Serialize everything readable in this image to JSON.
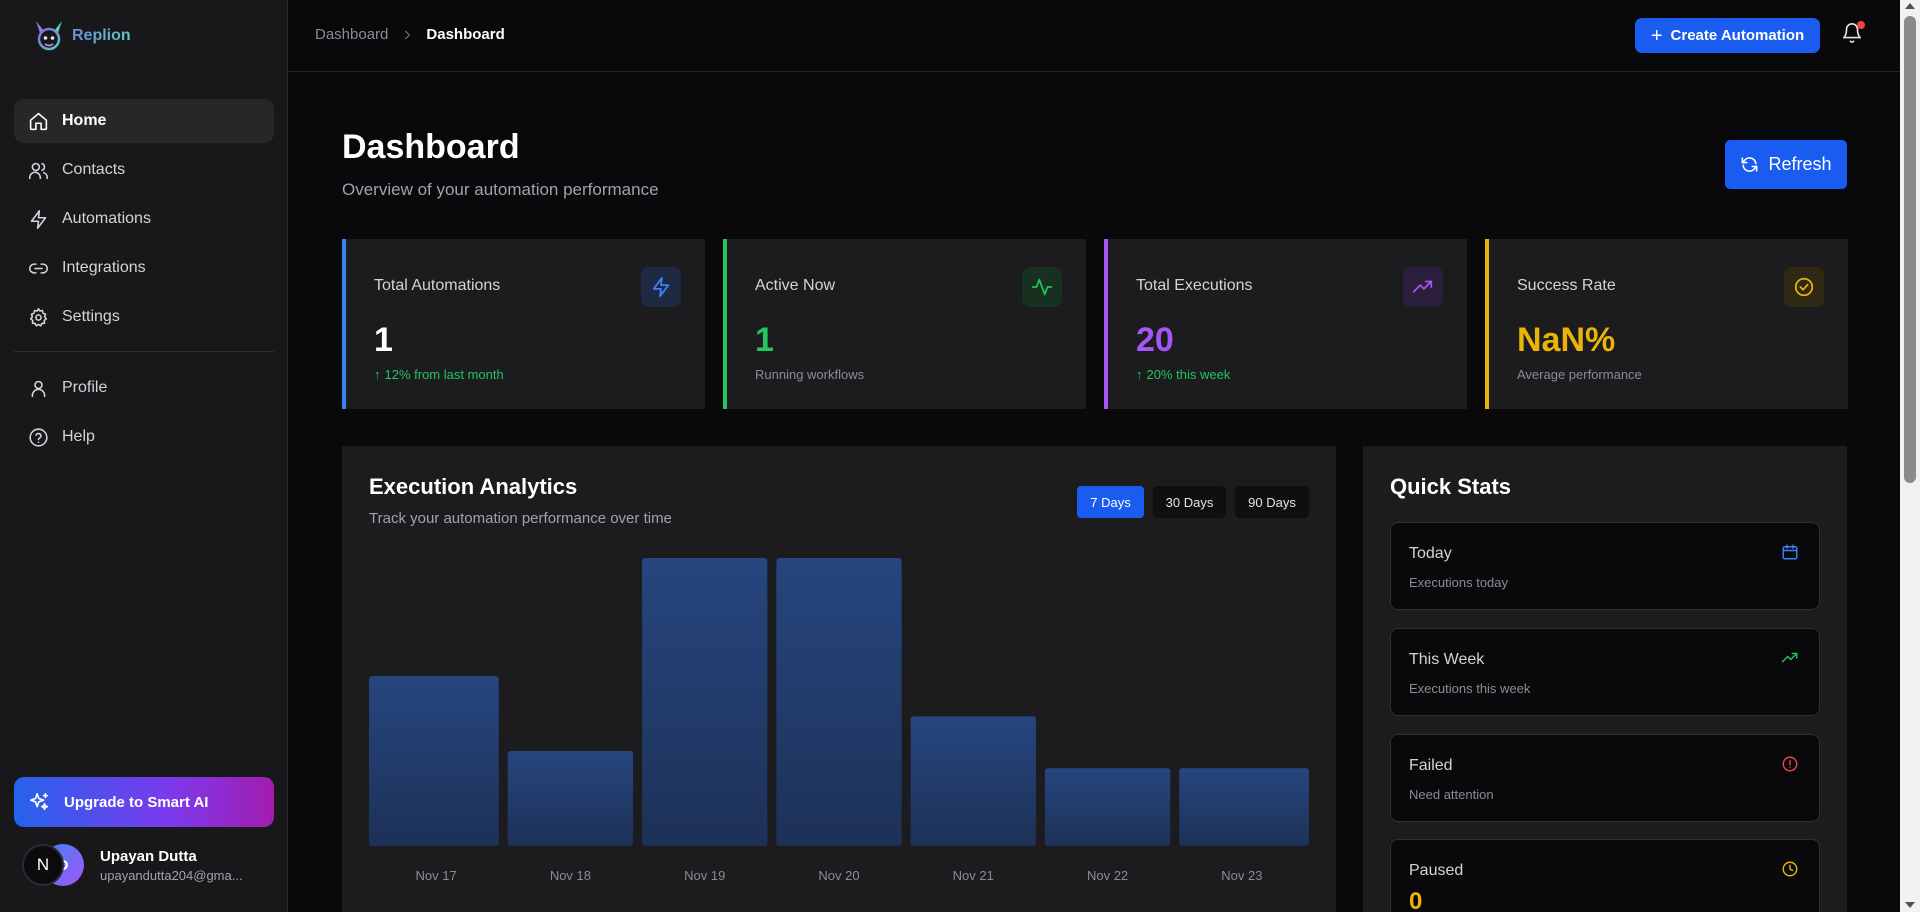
{
  "brand": {
    "name": "Replion"
  },
  "sidebar": {
    "items": [
      {
        "label": "Home",
        "icon": "home-icon",
        "active": true
      },
      {
        "label": "Contacts",
        "icon": "users-icon"
      },
      {
        "label": "Automations",
        "icon": "lightning-icon"
      },
      {
        "label": "Integrations",
        "icon": "link-icon"
      },
      {
        "label": "Settings",
        "icon": "gear-icon"
      }
    ],
    "secondary": [
      {
        "label": "Profile",
        "icon": "user-icon"
      },
      {
        "label": "Help",
        "icon": "help-icon"
      }
    ],
    "upgrade_label": "Upgrade to Smart AI",
    "user": {
      "initial_front": "N",
      "initial_back": "D",
      "name": "Upayan Dutta",
      "email": "upayandutta204@gma..."
    }
  },
  "header": {
    "breadcrumb": [
      "Dashboard",
      "Dashboard"
    ],
    "create_label": "Create Automation",
    "notification_dot": true
  },
  "page": {
    "title": "Dashboard",
    "subtitle": "Overview of your automation performance",
    "refresh_label": "Refresh"
  },
  "stats": [
    {
      "label": "Total Automations",
      "value": "1",
      "foot": "12% from last month",
      "trend": "up",
      "color": "#3b82f6",
      "icon": "lightning-icon"
    },
    {
      "label": "Active Now",
      "value": "1",
      "foot": "Running workflows",
      "trend": "none",
      "color": "#22c55e",
      "icon": "activity-icon"
    },
    {
      "label": "Total Executions",
      "value": "20",
      "foot": "20% this week",
      "trend": "up",
      "color": "#a855f7",
      "icon": "trending-up-icon"
    },
    {
      "label": "Success Rate",
      "value": "NaN%",
      "foot": "Average performance",
      "trend": "none",
      "color": "#eab308",
      "icon": "check-circle-icon"
    }
  ],
  "analytics": {
    "title": "Execution Analytics",
    "subtitle": "Track your automation performance over time",
    "ranges": [
      {
        "label": "7 Days",
        "active": true
      },
      {
        "label": "30 Days",
        "active": false
      },
      {
        "label": "90 Days",
        "active": false
      }
    ]
  },
  "chart_data": {
    "type": "bar",
    "categories": [
      "Nov 17",
      "Nov 18",
      "Nov 19",
      "Nov 20",
      "Nov 21",
      "Nov 22",
      "Nov 23"
    ],
    "values": [
      5.9,
      3.3,
      10,
      10,
      4.5,
      2.7,
      2.7
    ],
    "title": "Execution Analytics",
    "xlabel": "",
    "ylabel": "",
    "ylim": [
      0,
      10
    ],
    "grid": false,
    "bar_color": "#24437a"
  },
  "quick_stats": {
    "title": "Quick Stats",
    "items": [
      {
        "label": "Today",
        "sub": "Executions today",
        "icon": "calendar-icon",
        "color": "#3b82f6"
      },
      {
        "label": "This Week",
        "sub": "Executions this week",
        "icon": "trending-up-icon",
        "color": "#22c55e"
      },
      {
        "label": "Failed",
        "sub": "Need attention",
        "icon": "alert-circle-icon",
        "color": "#ef4444"
      },
      {
        "label": "Paused",
        "value": "0",
        "icon": "clock-icon",
        "color": "#eab308"
      }
    ]
  }
}
